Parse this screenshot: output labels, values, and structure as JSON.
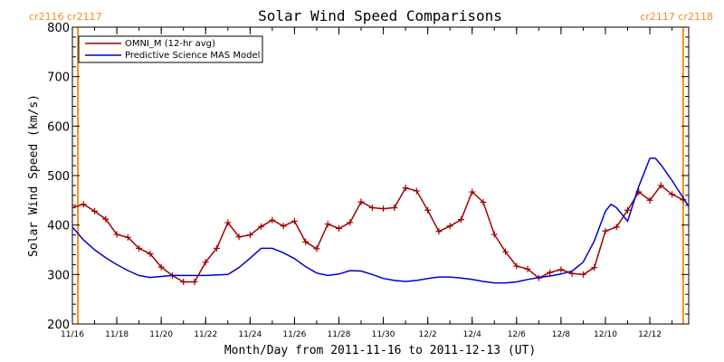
{
  "chart_data": {
    "type": "line",
    "title": "Solar Wind Speed Comparisons",
    "xlabel": "Month/Day from 2011-11-16 to 2011-12-13 (UT)",
    "ylabel": "Solar Wind Speed (km/s)",
    "xlim": [
      "2011-11-16",
      "2011-12-13"
    ],
    "ylim": [
      200,
      800
    ],
    "y_ticks": [
      200,
      300,
      400,
      500,
      600,
      700,
      800
    ],
    "x_ticks": [
      {
        "date": "2011-11-16",
        "label": "11/16"
      },
      {
        "date": "2011-11-18",
        "label": "11/18"
      },
      {
        "date": "2011-11-20",
        "label": "11/20"
      },
      {
        "date": "2011-11-22",
        "label": "11/22"
      },
      {
        "date": "2011-11-24",
        "label": "11/24"
      },
      {
        "date": "2011-11-26",
        "label": "11/26"
      },
      {
        "date": "2011-11-28",
        "label": "11/28"
      },
      {
        "date": "2011-11-30",
        "label": "11/30"
      },
      {
        "date": "2011-12-02",
        "label": "12/2"
      },
      {
        "date": "2011-12-04",
        "label": "12/4"
      },
      {
        "date": "2011-12-06",
        "label": "12/6"
      },
      {
        "date": "2011-12-08",
        "label": "12/8"
      },
      {
        "date": "2011-12-10",
        "label": "12/10"
      },
      {
        "date": "2011-12-12",
        "label": "12/12"
      }
    ],
    "carrington_markers": [
      {
        "date": "2011-11-16 06:00",
        "labels": [
          "cr2116",
          "cr2117"
        ],
        "side": "left"
      },
      {
        "date": "2011-12-13 12:00",
        "labels": [
          "cr2117",
          "cr2118"
        ],
        "side": "right"
      }
    ],
    "legend_position": "top-left",
    "series": [
      {
        "name": "OMNI_M (12-hr avg)",
        "color": "#a00000",
        "marker": "plus",
        "points": [
          [
            "2011-11-16 00:00",
            435
          ],
          [
            "2011-11-16 12:00",
            442
          ],
          [
            "2011-11-17 00:00",
            428
          ],
          [
            "2011-11-17 12:00",
            412
          ],
          [
            "2011-11-18 00:00",
            381
          ],
          [
            "2011-11-18 12:00",
            375
          ],
          [
            "2011-11-19 00:00",
            353
          ],
          [
            "2011-11-19 12:00",
            342
          ],
          [
            "2011-11-20 00:00",
            315
          ],
          [
            "2011-11-20 12:00",
            298
          ],
          [
            "2011-11-21 00:00",
            285
          ],
          [
            "2011-11-21 12:00",
            285
          ],
          [
            "2011-11-22 00:00",
            325
          ],
          [
            "2011-11-22 12:00",
            353
          ],
          [
            "2011-11-23 00:00",
            405
          ],
          [
            "2011-11-23 12:00",
            376
          ],
          [
            "2011-11-24 00:00",
            380
          ],
          [
            "2011-11-24 12:00",
            397
          ],
          [
            "2011-11-25 00:00",
            410
          ],
          [
            "2011-11-25 12:00",
            398
          ],
          [
            "2011-11-26 00:00",
            408
          ],
          [
            "2011-11-26 12:00",
            366
          ],
          [
            "2011-11-27 00:00",
            352
          ],
          [
            "2011-11-27 12:00",
            402
          ],
          [
            "2011-11-28 00:00",
            393
          ],
          [
            "2011-11-28 12:00",
            405
          ],
          [
            "2011-11-29 00:00",
            447
          ],
          [
            "2011-11-29 12:00",
            435
          ],
          [
            "2011-11-30 00:00",
            433
          ],
          [
            "2011-11-30 12:00",
            435
          ],
          [
            "2011-12-01 00:00",
            475
          ],
          [
            "2011-12-01 12:00",
            469
          ],
          [
            "2011-12-02 00:00",
            430
          ],
          [
            "2011-12-02 12:00",
            387
          ],
          [
            "2011-12-03 00:00",
            398
          ],
          [
            "2011-12-03 12:00",
            411
          ],
          [
            "2011-12-04 00:00",
            467
          ],
          [
            "2011-12-04 12:00",
            446
          ],
          [
            "2011-12-05 00:00",
            381
          ],
          [
            "2011-12-05 12:00",
            346
          ],
          [
            "2011-12-06 00:00",
            317
          ],
          [
            "2011-12-06 12:00",
            311
          ],
          [
            "2011-12-07 00:00",
            293
          ],
          [
            "2011-12-07 12:00",
            304
          ],
          [
            "2011-12-08 00:00",
            310
          ],
          [
            "2011-12-08 12:00",
            302
          ],
          [
            "2011-12-09 00:00",
            300
          ],
          [
            "2011-12-09 12:00",
            314
          ],
          [
            "2011-12-10 00:00",
            388
          ],
          [
            "2011-12-10 12:00",
            396
          ],
          [
            "2011-12-11 00:00",
            430
          ],
          [
            "2011-12-11 12:00",
            467
          ],
          [
            "2011-12-12 00:00",
            450
          ],
          [
            "2011-12-12 12:00",
            480
          ],
          [
            "2011-12-13 00:00",
            462
          ],
          [
            "2011-12-13 12:00",
            451
          ]
        ]
      },
      {
        "name": "Predictive Science MAS Model",
        "color": "#0000cc",
        "marker": "none",
        "points": [
          [
            "2011-11-16 00:00",
            396
          ],
          [
            "2011-11-16 12:00",
            370
          ],
          [
            "2011-11-17 00:00",
            350
          ],
          [
            "2011-11-17 12:00",
            334
          ],
          [
            "2011-11-18 00:00",
            320
          ],
          [
            "2011-11-18 12:00",
            308
          ],
          [
            "2011-11-19 00:00",
            298
          ],
          [
            "2011-11-19 12:00",
            294
          ],
          [
            "2011-11-20 00:00",
            296
          ],
          [
            "2011-11-20 12:00",
            298
          ],
          [
            "2011-11-21 00:00",
            298
          ],
          [
            "2011-11-22 00:00",
            298
          ],
          [
            "2011-11-23 00:00",
            300
          ],
          [
            "2011-11-23 12:00",
            314
          ],
          [
            "2011-11-24 00:00",
            333
          ],
          [
            "2011-11-24 12:00",
            353
          ],
          [
            "2011-11-25 00:00",
            353
          ],
          [
            "2011-11-25 12:00",
            344
          ],
          [
            "2011-11-26 00:00",
            332
          ],
          [
            "2011-11-26 12:00",
            316
          ],
          [
            "2011-11-27 00:00",
            303
          ],
          [
            "2011-11-27 12:00",
            298
          ],
          [
            "2011-11-28 00:00",
            301
          ],
          [
            "2011-11-28 12:00",
            308
          ],
          [
            "2011-11-29 00:00",
            307
          ],
          [
            "2011-11-29 12:00",
            300
          ],
          [
            "2011-11-30 00:00",
            292
          ],
          [
            "2011-11-30 12:00",
            288
          ],
          [
            "2011-12-01 00:00",
            286
          ],
          [
            "2011-12-01 12:00",
            288
          ],
          [
            "2011-12-02 00:00",
            292
          ],
          [
            "2011-12-02 12:00",
            295
          ],
          [
            "2011-12-03 00:00",
            295
          ],
          [
            "2011-12-03 12:00",
            293
          ],
          [
            "2011-12-04 00:00",
            290
          ],
          [
            "2011-12-04 12:00",
            286
          ],
          [
            "2011-12-05 00:00",
            283
          ],
          [
            "2011-12-05 12:00",
            283
          ],
          [
            "2011-12-06 00:00",
            285
          ],
          [
            "2011-12-06 12:00",
            290
          ],
          [
            "2011-12-07 00:00",
            294
          ],
          [
            "2011-12-07 12:00",
            297
          ],
          [
            "2011-12-08 00:00",
            301
          ],
          [
            "2011-12-08 12:00",
            307
          ],
          [
            "2011-12-09 00:00",
            325
          ],
          [
            "2011-12-09 12:00",
            368
          ],
          [
            "2011-12-10 00:00",
            428
          ],
          [
            "2011-12-10 06:00",
            442
          ],
          [
            "2011-12-10 12:00",
            435
          ],
          [
            "2011-12-11 00:00",
            408
          ],
          [
            "2011-12-11 12:00",
            478
          ],
          [
            "2011-12-12 00:00",
            535
          ],
          [
            "2011-12-12 06:00",
            535
          ],
          [
            "2011-12-12 12:00",
            522
          ],
          [
            "2011-12-13 00:00",
            490
          ],
          [
            "2011-12-13 12:00",
            455
          ],
          [
            "2011-12-14 00:00",
            420
          ]
        ]
      }
    ]
  },
  "colors": {
    "marker_line": "#f28c1e",
    "axis": "#000000"
  }
}
